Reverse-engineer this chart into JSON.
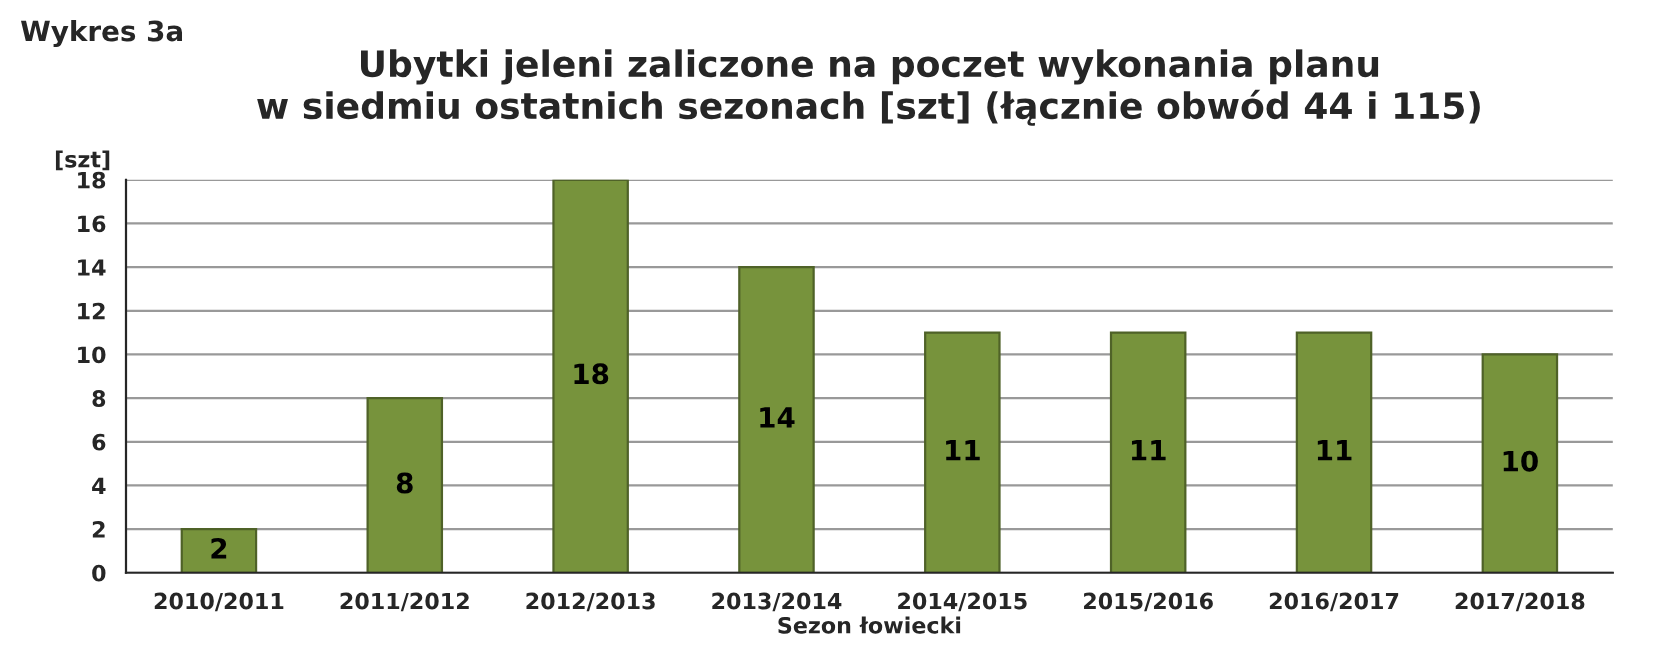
{
  "chart_data": {
    "type": "bar",
    "title": "Ubytki jeleni zaliczone na poczet wykonania planu\nw siedmiu ostatnich sezonach [szt] (łącznie obwód 44 i 115)",
    "annotations": [
      "Wykres 3a"
    ],
    "ylabel": "[szt]",
    "xlabel": "Sezon łowiecki",
    "categories": [
      "2010/2011",
      "2011/2012",
      "2012/2013",
      "2013/2014",
      "2014/2015",
      "2015/2016",
      "2016/2017",
      "2017/2018"
    ],
    "values": [
      2,
      8,
      18,
      14,
      11,
      11,
      11,
      10
    ],
    "color": "#77933c",
    "ylim": [
      0,
      18
    ],
    "yticks": [
      0,
      2,
      4,
      6,
      8,
      10,
      12,
      14,
      16,
      18
    ],
    "grid": "y",
    "data_labels": true
  }
}
